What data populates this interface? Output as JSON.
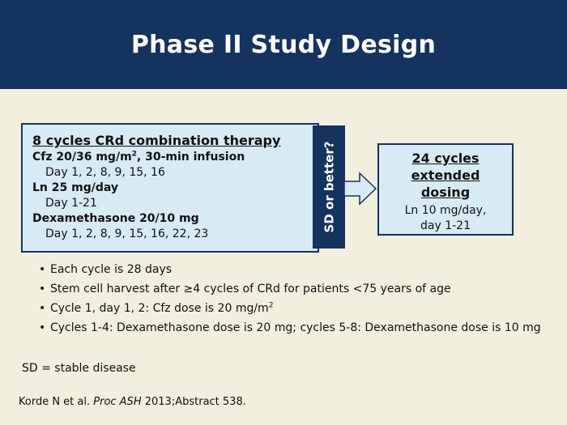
{
  "slide": {
    "title": "Phase II Study Design"
  },
  "therapy_box": {
    "title": "8 cycles CRd combination therapy",
    "drugs": [
      {
        "name_pre": "Cfz 20/36 mg/m",
        "name_sup": "2",
        "name_post": ", 30-min infusion",
        "schedule": "Day 1, 2, 8, 9, 15, 16"
      },
      {
        "name": "Ln 25 mg/day",
        "schedule": "Day 1-21"
      },
      {
        "name": "Dexamethasone 20/10 mg",
        "schedule": "Day 1, 2, 8, 9, 15, 16, 22, 23"
      }
    ]
  },
  "decision_bar": {
    "label": "SD or better?"
  },
  "extended_box": {
    "title_lines": [
      "24 cycles",
      "extended",
      "dosing"
    ],
    "detail_lines": [
      "Ln 10 mg/day,",
      "day 1-21"
    ]
  },
  "bullets": [
    {
      "text": "Each cycle is 28 days"
    },
    {
      "text": "Stem cell harvest after ≥4 cycles of CRd for patients <75 years of age"
    },
    {
      "text_pre": "Cycle 1, day 1, 2: Cfz dose is 20 mg/m",
      "text_sup": "2"
    },
    {
      "text": "Cycles 1-4: Dexamethasone dose is 20 mg; cycles 5-8: Dexamethasone dose is 10 mg"
    }
  ],
  "bullet_glyph": "•",
  "abbreviation": "SD = stable disease",
  "reference": {
    "authors": "Korde N et al. ",
    "journal": "Proc ASH",
    "rest": " 2013;Abstract 538."
  },
  "colors": {
    "navy": "#15335f",
    "box_fill": "#d8eaf3",
    "background": "#f2efde"
  }
}
